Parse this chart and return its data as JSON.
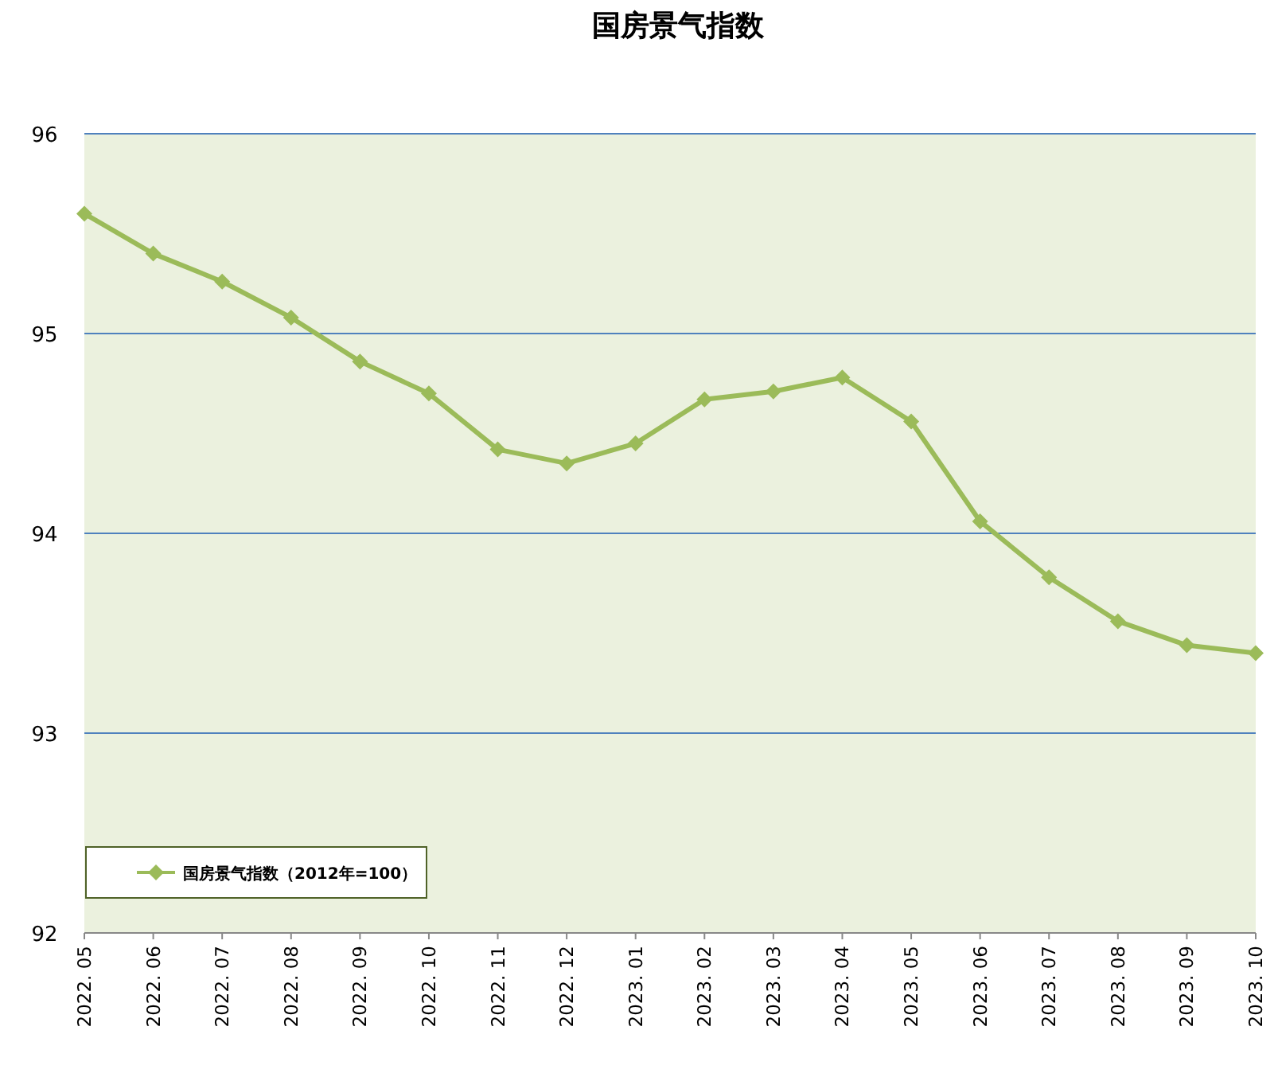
{
  "chart_data": {
    "type": "line",
    "title": "国房景气指数",
    "categories": [
      "2022. 05",
      "2022. 06",
      "2022. 07",
      "2022. 08",
      "2022. 09",
      "2022. 10",
      "2022. 11",
      "2022. 12",
      "2023. 01",
      "2023. 02",
      "2023. 03",
      "2023. 04",
      "2023. 05",
      "2023. 06",
      "2023. 07",
      "2023. 08",
      "2023. 09",
      "2023. 10"
    ],
    "series": [
      {
        "name": "国房景气指数（2012年=100）",
        "color": "#9bbb59",
        "values": [
          95.6,
          95.4,
          95.26,
          95.08,
          94.86,
          94.7,
          94.42,
          94.35,
          94.45,
          94.67,
          94.71,
          94.78,
          94.56,
          94.06,
          93.78,
          93.56,
          93.44,
          93.4
        ]
      }
    ],
    "ylim": [
      92,
      96
    ],
    "yticks": [
      92,
      93,
      94,
      95,
      96
    ],
    "grid": "y",
    "legend": "bottom left",
    "marker": "diamond",
    "line_style": "solid"
  }
}
